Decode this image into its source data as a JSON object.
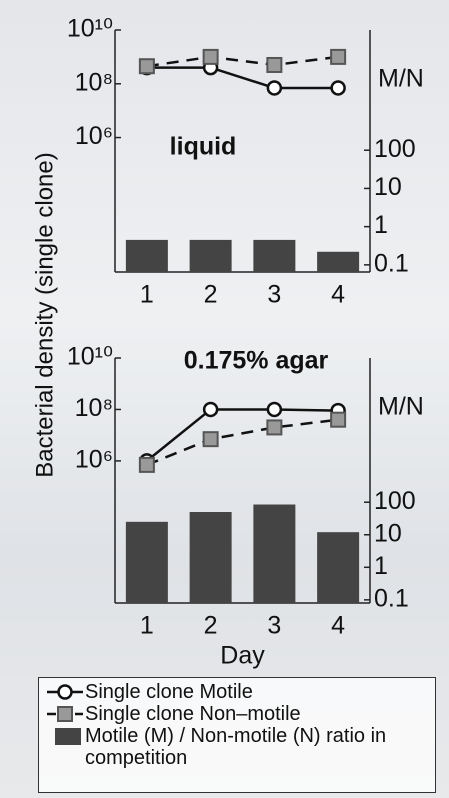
{
  "chart_data": [
    {
      "type": "line",
      "title": "liquid",
      "ylabel": "Bacterial density (single clone)",
      "categories": [
        "1",
        "2",
        "3",
        "4"
      ],
      "log_scale": true,
      "ylim": [
        10,
        10000000000
      ],
      "yticks": [
        {
          "value": 10000000000,
          "label": "10¹⁰"
        },
        {
          "value": 100000000,
          "label": "10⁸"
        },
        {
          "value": 1000000,
          "label": "10⁶"
        }
      ],
      "y2label": "M/N",
      "y2lim": [
        0.065,
        140000
      ],
      "y2ticks": [
        100,
        10,
        1,
        0.1
      ],
      "series": [
        {
          "name": "Single clone Motile",
          "type": "line",
          "marker": "circle",
          "dash": false,
          "color": "#111111",
          "values": [
            400000000,
            400000000,
            70000000,
            70000000
          ]
        },
        {
          "name": "Single clone Non–motile",
          "type": "line",
          "marker": "square",
          "dash": true,
          "color": "#111111",
          "values": [
            450000000,
            1000000000,
            500000000,
            1000000000
          ]
        },
        {
          "name": "Motile (M) / Non-motile (N) ratio in competition",
          "type": "bar",
          "axis": "y2",
          "color": "#444444",
          "values": [
            0.45,
            0.45,
            0.45,
            0.22
          ]
        }
      ]
    },
    {
      "type": "line",
      "title": "0.175% agar",
      "xlabel": "Day",
      "categories": [
        "1",
        "2",
        "3",
        "4"
      ],
      "log_scale": true,
      "ylim": [
        3,
        10000000000
      ],
      "yticks": [
        {
          "value": 10000000000,
          "label": "10¹⁰"
        },
        {
          "value": 100000000,
          "label": "10⁸"
        },
        {
          "value": 1000000,
          "label": "10⁶"
        }
      ],
      "y2label": "M/N",
      "y2lim": [
        0.08,
        2700000
      ],
      "y2ticks": [
        100,
        10,
        1,
        0.1
      ],
      "series": [
        {
          "type": "line",
          "marker": "circle",
          "dash": false,
          "color": "#111111",
          "values": [
            1000000,
            100000000,
            100000000,
            90000000
          ]
        },
        {
          "type": "line",
          "marker": "square",
          "dash": true,
          "color": "#111111",
          "values": [
            700000,
            7000000,
            20000000,
            40000000
          ]
        },
        {
          "type": "bar",
          "axis": "y2",
          "color": "#444444",
          "values": [
            25,
            50,
            85,
            12
          ]
        }
      ]
    }
  ]
}
